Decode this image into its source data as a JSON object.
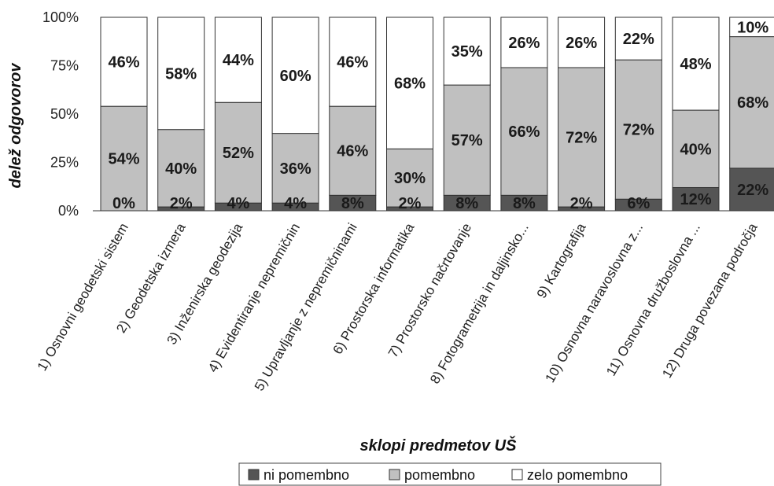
{
  "chart_data": {
    "type": "bar",
    "stacked": true,
    "xlabel": "sklopi predmetov UŠ",
    "ylabel": "delež odgovorov",
    "ylim": [
      0,
      100
    ],
    "y_ticks": [
      "0%",
      "25%",
      "50%",
      "75%",
      "100%"
    ],
    "y_tick_values": [
      0,
      25,
      50,
      75,
      100
    ],
    "legend_position": "bottom",
    "categories": [
      "1) Osnovni geodetski sistem",
      "2) Geodetska izmera",
      "3) Inženirska geodezija",
      "4) Evidentiranje nepremičnin",
      "5) Upravljanje z nepremičninami",
      "6) Prostorska informatika",
      "7) Prostorsko načrtovanje",
      "8) Fotogrametrija in daljinsko...",
      "9) Kartografija",
      "10) Osnovna naravoslovna z...",
      "11) Osnovna družboslovna ...",
      "12) Druga povezana področja"
    ],
    "series": [
      {
        "name": "ni pomembno",
        "color": "#555555",
        "values": [
          0,
          2,
          4,
          4,
          8,
          2,
          8,
          8,
          2,
          6,
          12,
          22
        ],
        "labels": [
          "0%",
          "2%",
          "4%",
          "4%",
          "8%",
          "2%",
          "8%",
          "8%",
          "2%",
          "6%",
          "12%",
          "22%"
        ]
      },
      {
        "name": "pomembno",
        "color": "#c0c0c0",
        "values": [
          54,
          40,
          52,
          36,
          46,
          30,
          57,
          66,
          72,
          72,
          40,
          68
        ],
        "labels": [
          "54%",
          "40%",
          "52%",
          "36%",
          "46%",
          "30%",
          "57%",
          "66%",
          "72%",
          "72%",
          "40%",
          "68%"
        ]
      },
      {
        "name": "zelo pomembno",
        "color": "#ffffff",
        "values": [
          46,
          58,
          44,
          60,
          46,
          68,
          35,
          26,
          26,
          22,
          48,
          10
        ],
        "labels": [
          "46%",
          "58%",
          "44%",
          "60%",
          "46%",
          "68%",
          "35%",
          "26%",
          "26%",
          "22%",
          "48%",
          "10%"
        ]
      }
    ]
  }
}
